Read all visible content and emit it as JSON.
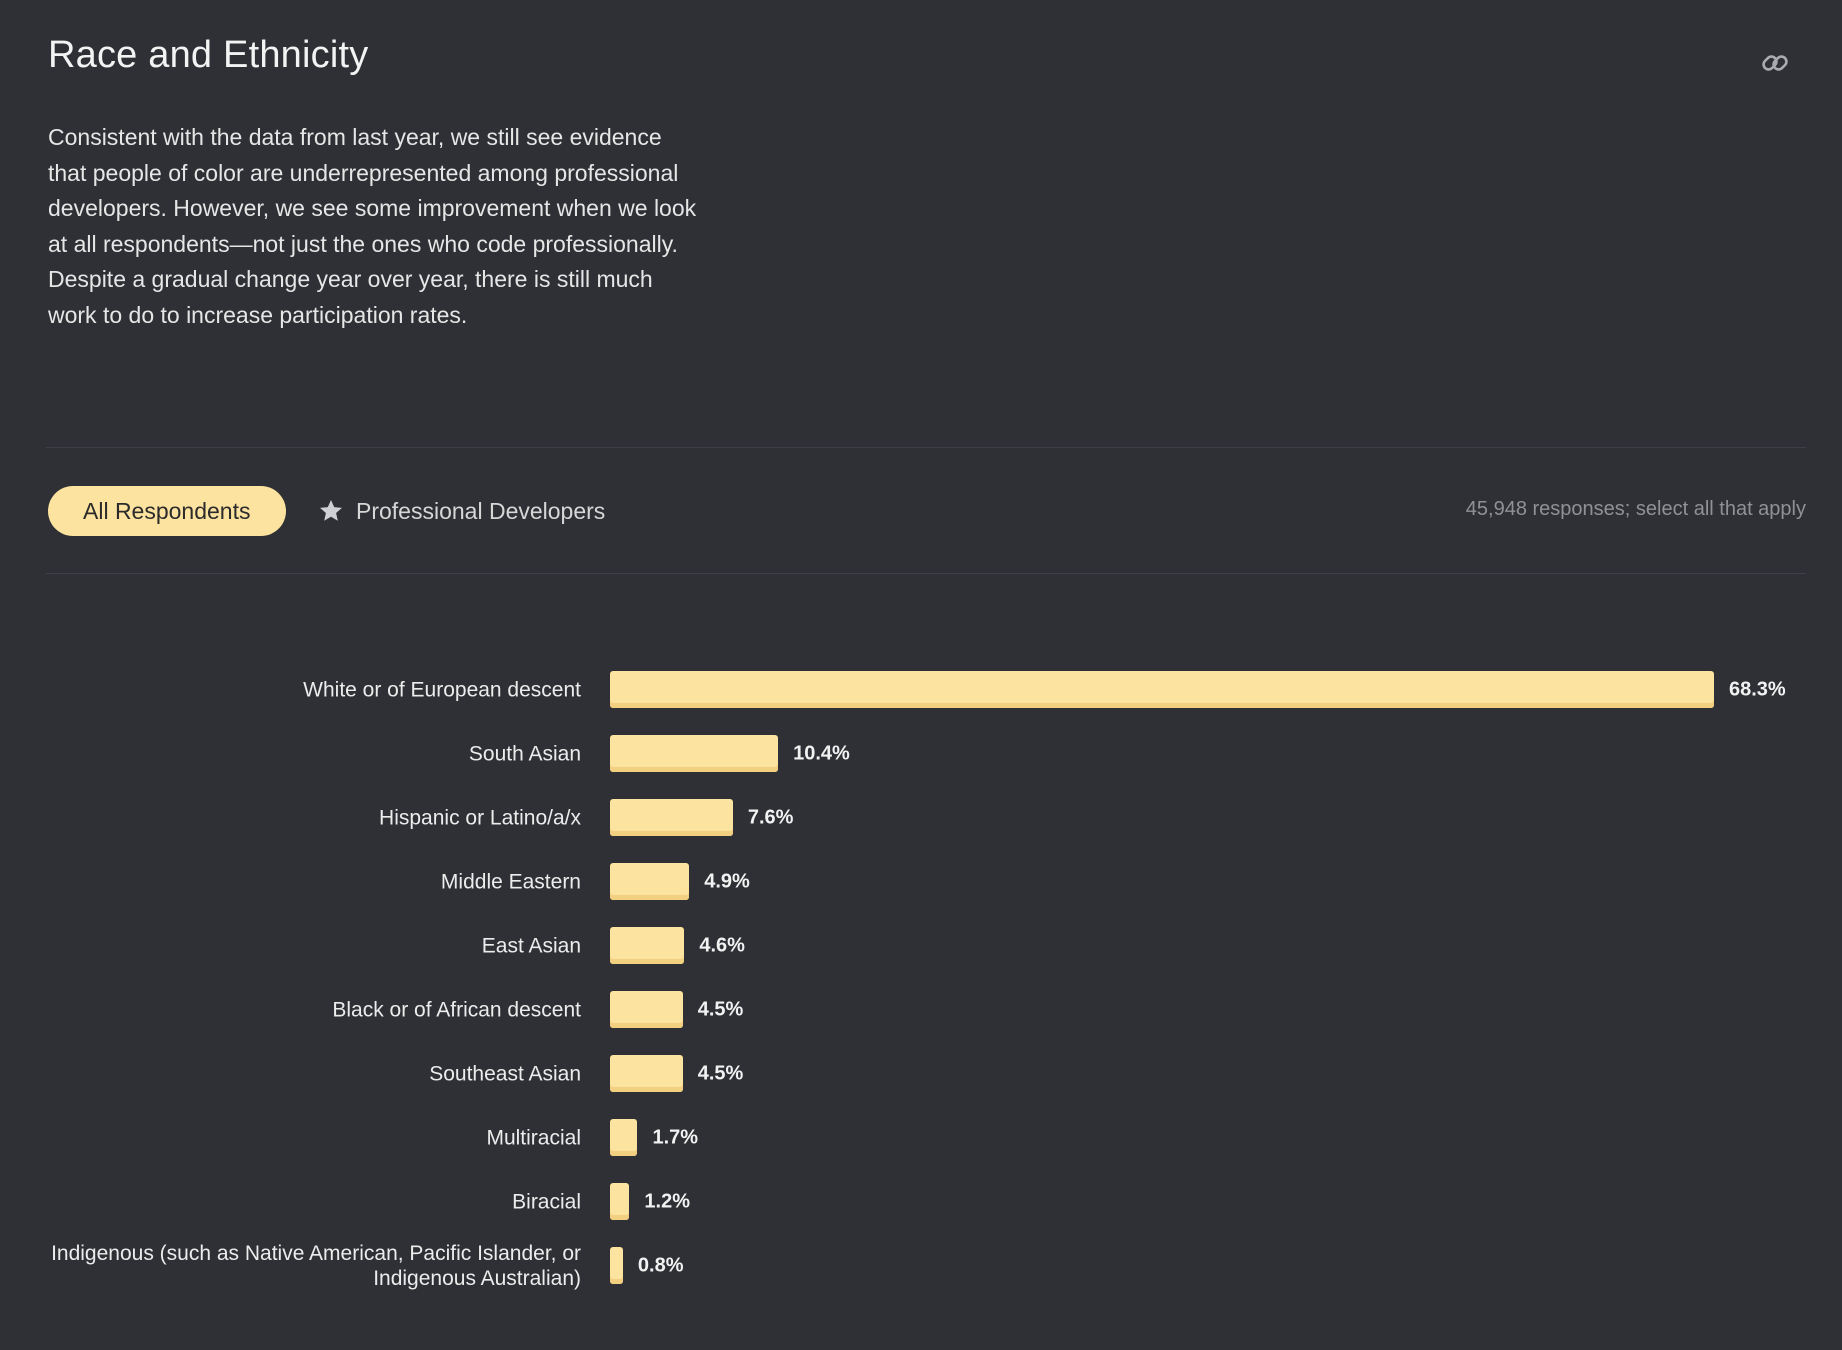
{
  "section": {
    "title": "Race and Ethnicity",
    "description": "Consistent with the data from last year, we still see evidence that people of color are underrepresented among professional developers. However, we see some improvement when we look at all respondents—not just the ones who code professionally. Despite a gradual change year over year, there is still much work to do to increase participation rates.",
    "link_icon": "link-icon"
  },
  "filters": {
    "active_tab": "All Respondents",
    "secondary_tab": "Professional Developers",
    "secondary_tab_icon": "star-icon",
    "responses_note": "45,948 responses; select all that apply"
  },
  "colors": {
    "background": "#2e3035",
    "bar": "#fde3a0",
    "bar_shadow": "#f3cf80"
  },
  "chart_data": {
    "type": "bar",
    "orientation": "horizontal",
    "title": "Race and Ethnicity",
    "xlabel": "",
    "ylabel": "",
    "xlim": [
      0,
      68.3
    ],
    "grid": false,
    "unit": "%",
    "categories": [
      "White or of European descent",
      "South Asian",
      "Hispanic or Latino/a/x",
      "Middle Eastern",
      "East Asian",
      "Black or of African descent",
      "Southeast Asian",
      "Multiracial",
      "Biracial",
      "Indigenous (such as Native American, Pacific Islander, or Indigenous Australian)"
    ],
    "values": [
      68.3,
      10.4,
      7.6,
      4.9,
      4.6,
      4.5,
      4.5,
      1.7,
      1.2,
      0.8
    ],
    "value_labels": [
      "68.3%",
      "10.4%",
      "7.6%",
      "4.9%",
      "4.6%",
      "4.5%",
      "4.5%",
      "1.7%",
      "1.2%",
      "0.8%"
    ]
  }
}
